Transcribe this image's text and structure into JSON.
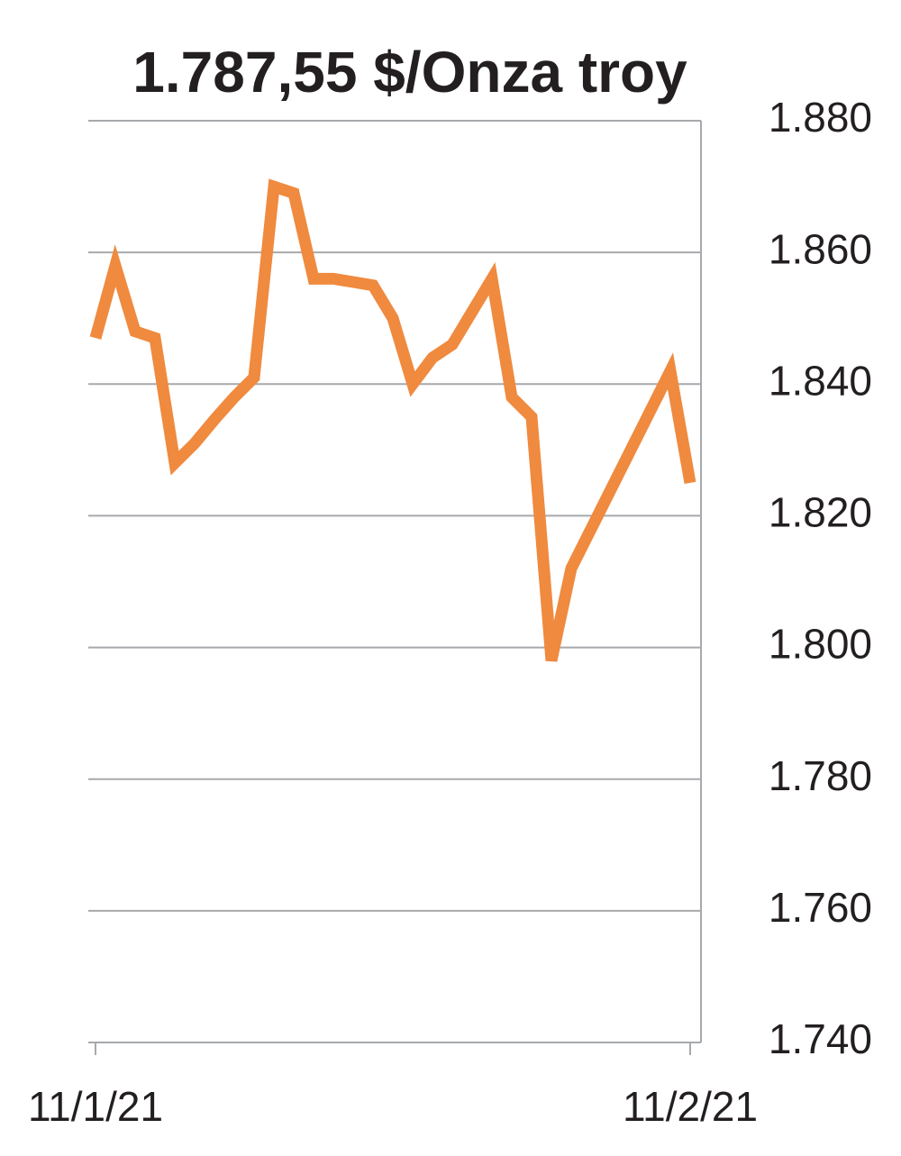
{
  "chart_data": {
    "type": "line",
    "title": "1.787,55 $/Onza troy",
    "categories": [
      "11/1/21",
      null,
      null,
      null,
      null,
      null,
      null,
      null,
      null,
      null,
      null,
      null,
      null,
      null,
      null,
      null,
      null,
      null,
      null,
      null,
      null,
      null,
      null,
      null,
      null,
      null,
      null,
      null,
      null,
      null,
      "11/2/21"
    ],
    "values": [
      1847,
      1858,
      1848,
      1847,
      1828,
      1831,
      1834.6,
      1838,
      1841,
      1870,
      1869,
      1856,
      1856,
      1855.5,
      1855,
      1850,
      1840,
      1844,
      1846,
      1851,
      1856,
      1838,
      1835,
      1798,
      1812,
      1818,
      1824,
      1830,
      1836,
      1842,
      1825
    ],
    "color": "#ef8a3f",
    "ylim": [
      1740,
      1880
    ],
    "yticks": [
      {
        "value": 1740,
        "label": "1.740"
      },
      {
        "value": 1760,
        "label": "1.760"
      },
      {
        "value": 1780,
        "label": "1.780"
      },
      {
        "value": 1800,
        "label": "1.800"
      },
      {
        "value": 1820,
        "label": "1.820"
      },
      {
        "value": 1840,
        "label": "1.840"
      },
      {
        "value": 1860,
        "label": "1.860"
      },
      {
        "value": 1880,
        "label": "1.880"
      }
    ],
    "grid": true
  }
}
